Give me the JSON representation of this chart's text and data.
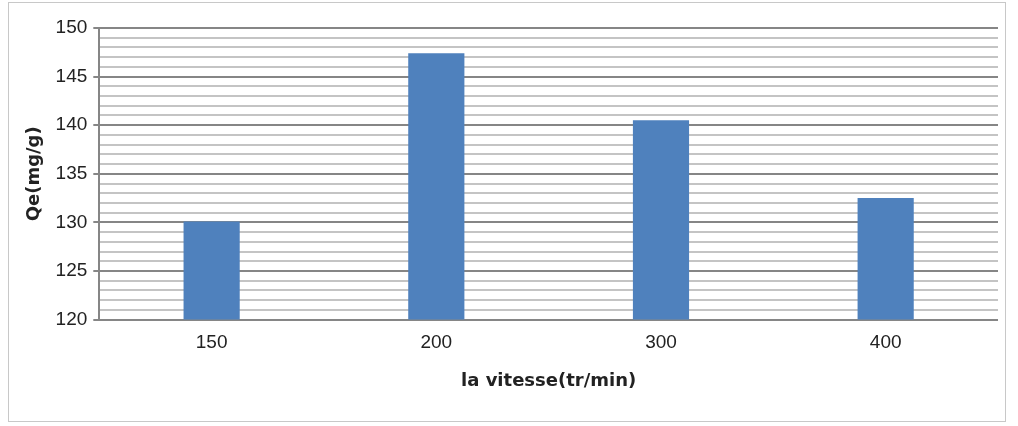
{
  "chart_data": {
    "type": "bar",
    "xlabel": "la vitesse(tr/min)",
    "ylabel": "Qe(mg/g)",
    "categories": [
      "150",
      "200",
      "300",
      "400"
    ],
    "values": [
      130.1,
      147.4,
      140.5,
      132.5
    ],
    "color": "#4f81bd",
    "ylim": [
      120,
      150
    ],
    "yticks": [
      120,
      {
        "value": 121,
        "label": null
      },
      {
        "value": 122,
        "label": null
      },
      {
        "value": 123,
        "label": null
      },
      {
        "value": 124,
        "label": null
      },
      125,
      {
        "value": 126,
        "label": null
      },
      {
        "value": 127,
        "label": null
      },
      {
        "value": 128,
        "label": null
      },
      {
        "value": 129,
        "label": null
      },
      130,
      {
        "value": 131,
        "label": null
      },
      {
        "value": 132,
        "label": null
      },
      {
        "value": 133,
        "label": null
      },
      {
        "value": 134,
        "label": null
      },
      135,
      {
        "value": 136,
        "label": null
      },
      {
        "value": 137,
        "label": null
      },
      {
        "value": 138,
        "label": null
      },
      {
        "value": 139,
        "label": null
      },
      140,
      {
        "value": 141,
        "label": null
      },
      {
        "value": 142,
        "label": null
      },
      {
        "value": 143,
        "label": null
      },
      {
        "value": 144,
        "label": null
      },
      145,
      {
        "value": 146,
        "label": null
      },
      {
        "value": 147,
        "label": null
      },
      {
        "value": 148,
        "label": null
      },
      {
        "value": 149,
        "label": null
      },
      150
    ],
    "grid": "y",
    "legend": false
  }
}
